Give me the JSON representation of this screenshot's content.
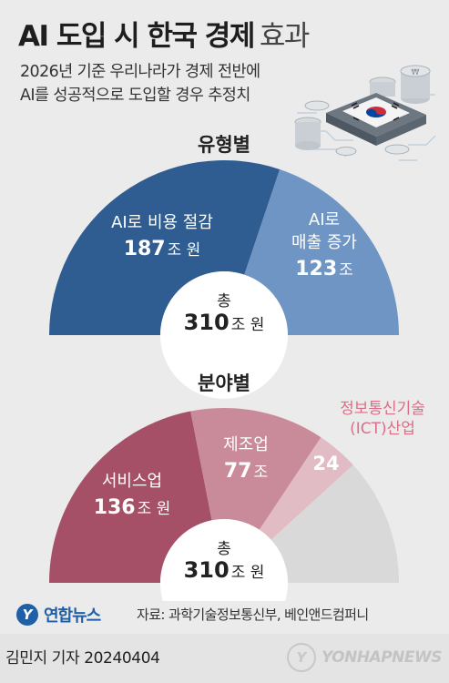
{
  "header": {
    "title": "AI 도입 시 한국 경제",
    "title_light": "효과",
    "subtitle_lines": [
      "2026년 기준 우리나라가 경제 전반에",
      "AI를 성공적으로 도입할 경우 추정치"
    ]
  },
  "chart_data": [
    {
      "type": "pie",
      "subtype": "half-donut",
      "title": "유형별",
      "unit": "조 원",
      "slices": [
        {
          "label_lines": [
            "AI로 비용 절감"
          ],
          "value": 187,
          "value_unit": "조 원",
          "color": "#2f5d91"
        },
        {
          "label_lines": [
            "AI로",
            "매출 증가"
          ],
          "value": 123,
          "value_unit": "조",
          "color": "#6f95c4"
        }
      ],
      "total": {
        "label": "총",
        "value": 310,
        "unit": "조 원"
      }
    },
    {
      "type": "pie",
      "subtype": "half-donut",
      "title": "분야별",
      "unit": "조 원",
      "slices": [
        {
          "label_lines": [
            "서비스업"
          ],
          "value": 136,
          "value_unit": "조 원",
          "color": "#a55066"
        },
        {
          "label_lines": [
            "제조업"
          ],
          "value": 77,
          "value_unit": "조",
          "color": "#c98b99"
        },
        {
          "label_lines": [
            "정보통신기술",
            "(ICT)산업"
          ],
          "value": 24,
          "value_unit": "",
          "color": "#e2bcc4"
        },
        {
          "label_lines": [
            ""
          ],
          "value": 73,
          "value_unit": "",
          "color": "#d9d9d9"
        }
      ],
      "total": {
        "label": "총",
        "value": 310,
        "unit": "조 원"
      }
    }
  ],
  "footer": {
    "logo_mark": "Y",
    "logo_text": "연합뉴스",
    "source": "자료: 과학기술정보통신부, 베인앤드컴퍼니",
    "reporter": "김민지 기자  20240404",
    "watermark": "YONHAPNEWS",
    "watermark_mark": "Y"
  },
  "colors": {
    "background": "#ebebeb",
    "flag_red": "#cd2e3a",
    "flag_blue": "#0047a0"
  },
  "icons": [
    "korea-flag-chip-icon",
    "coin-stack-icon"
  ]
}
